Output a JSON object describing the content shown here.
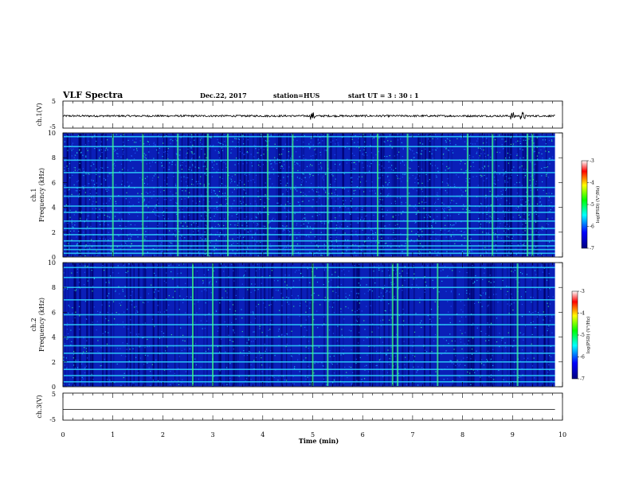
{
  "header": {
    "title": "VLF Spectra",
    "date": "Dec.22, 2017",
    "station": "station=HUS",
    "start_ut": "start  UT =   3 : 30 : 1"
  },
  "colors": {
    "waveform": "#000000",
    "spectrogram_background": "#0a1fb8",
    "colormap": [
      "#00007f",
      "#0000ff",
      "#00ffff",
      "#00ff00",
      "#ffff00",
      "#ff0000",
      "#ffffff"
    ]
  },
  "chart_data": [
    {
      "type": "line",
      "name": "waveform-ch1",
      "ylabel": "ch.1(V)",
      "ylim": [
        -5,
        5
      ],
      "yticks": [
        "5",
        "-5"
      ],
      "xlim": [
        0,
        10
      ],
      "baseline": -0.5,
      "noise_amplitude": 0.35,
      "burst_minutes": [
        5.0,
        9.0,
        9.2
      ]
    },
    {
      "type": "heatmap",
      "name": "spectrogram-ch1",
      "ylabel_top": "ch.1",
      "ylabel": "Frequency (kHz)",
      "ylim": [
        0,
        10
      ],
      "yticks": [
        "0",
        "2",
        "4",
        "6",
        "8",
        "10"
      ],
      "xlim": [
        0,
        9.85
      ],
      "horizontal_bands_khz": [
        0.3,
        0.6,
        0.9,
        1.3,
        1.8,
        2.3,
        2.9,
        3.6,
        4.1,
        4.9,
        5.6,
        6.8,
        7.8,
        8.9,
        9.7
      ],
      "bright_columns_minutes": [
        1.0,
        1.6,
        2.3,
        2.9,
        3.3,
        4.1,
        4.6,
        5.3,
        6.3,
        6.9,
        8.1,
        8.6,
        9.3,
        9.4
      ]
    },
    {
      "type": "heatmap",
      "name": "spectrogram-ch2",
      "ylabel_top": "ch.2",
      "ylabel": "Frequency (kHz)",
      "ylim": [
        0,
        10
      ],
      "yticks": [
        "0",
        "2",
        "4",
        "6",
        "8",
        "10"
      ],
      "xlim": [
        0,
        9.85
      ],
      "horizontal_bands_khz": [
        0.4,
        0.9,
        1.4,
        2.0,
        2.7,
        3.3,
        4.0,
        5.0,
        5.8,
        7.0,
        8.0,
        8.8,
        9.6
      ],
      "bright_columns_minutes": [
        2.6,
        3.0,
        5.0,
        5.3,
        6.6,
        6.7,
        7.5,
        9.1
      ]
    },
    {
      "type": "line",
      "name": "waveform-ch3",
      "ylabel": "ch.3(V)",
      "ylim": [
        -5,
        5
      ],
      "yticks": [
        "5",
        "-5"
      ],
      "xlim": [
        0,
        10
      ],
      "baseline": -1.0,
      "noise_amplitude": 0.0,
      "xlabel": "Time (min)",
      "xticks": [
        "0",
        "1",
        "2",
        "3",
        "4",
        "5",
        "6",
        "7",
        "8",
        "9",
        "10"
      ]
    }
  ],
  "colorbars": [
    {
      "name": "colorbar-ch1",
      "title": "log(PSD) (V²/Hz)",
      "range": [
        -7,
        -3
      ],
      "ticks": [
        "-3",
        "-4",
        "-5",
        "-6",
        "-7"
      ]
    },
    {
      "name": "colorbar-ch2",
      "title": "log(PSD) (V²/Hz)",
      "range": [
        -7,
        -3
      ],
      "ticks": [
        "-3",
        "-4",
        "-5",
        "-6",
        "-7"
      ]
    }
  ]
}
